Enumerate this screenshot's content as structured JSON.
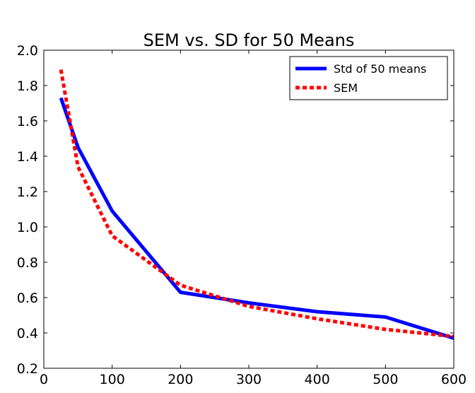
{
  "chart_data": {
    "type": "line",
    "title": "SEM vs. SD for 50 Means",
    "xlabel": "",
    "ylabel": "",
    "xlim": [
      0,
      600
    ],
    "ylim": [
      0.2,
      2.0
    ],
    "xticks": [
      0,
      100,
      200,
      300,
      400,
      500,
      600
    ],
    "xtick_labels": [
      "0",
      "100",
      "200",
      "300",
      "400",
      "500",
      "600"
    ],
    "yticks": [
      0.2,
      0.4,
      0.6,
      0.8,
      1.0,
      1.2,
      1.4,
      1.6,
      1.8,
      2.0
    ],
    "ytick_labels": [
      "0.2",
      "0.4",
      "0.6",
      "0.8",
      "1.0",
      "1.2",
      "1.4",
      "1.6",
      "1.8",
      "2.0"
    ],
    "grid": false,
    "legend_position": "top-right",
    "series": [
      {
        "name": "Std of 50 means",
        "color": "#0000ff",
        "linestyle": "solid",
        "x": [
          25,
          50,
          100,
          200,
          300,
          400,
          500,
          600
        ],
        "y": [
          1.73,
          1.45,
          1.09,
          0.63,
          0.57,
          0.52,
          0.49,
          0.37
        ]
      },
      {
        "name": "SEM",
        "color": "#ff0000",
        "linestyle": "dotted",
        "x": [
          25,
          50,
          100,
          200,
          300,
          400,
          500,
          600
        ],
        "y": [
          1.89,
          1.34,
          0.95,
          0.67,
          0.55,
          0.48,
          0.42,
          0.38
        ]
      }
    ]
  }
}
